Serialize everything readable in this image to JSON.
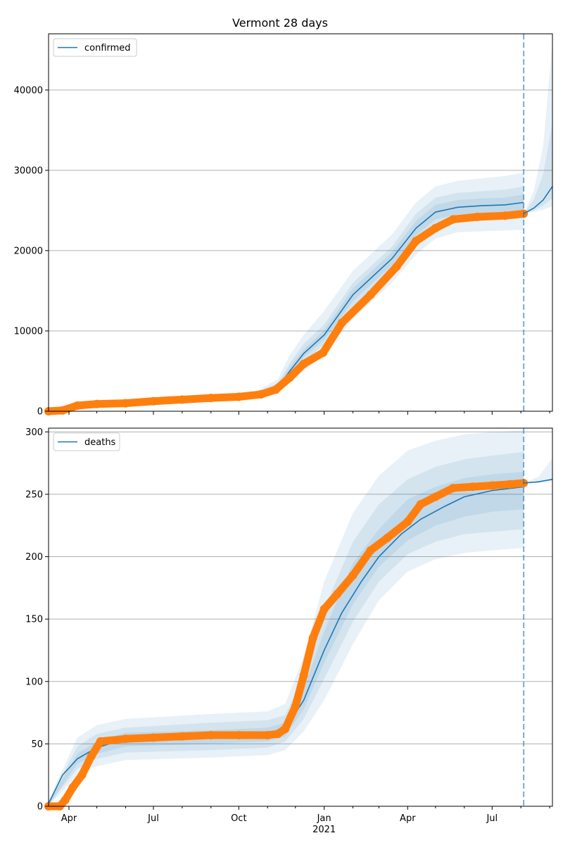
{
  "chart_data": [
    {
      "type": "line",
      "panel": "top",
      "title": "Vermont 28 days",
      "ylim": [
        0,
        47000
      ],
      "yticks": [
        0,
        10000,
        20000,
        30000,
        40000
      ],
      "grid": "y-major",
      "legend": {
        "placement": "top-left",
        "entries": [
          "confirmed"
        ]
      },
      "xlim": [
        "2020-03-10",
        "2021-09-04"
      ],
      "forecast_start": "2021-08-04",
      "series": [
        {
          "name": "confirmed",
          "style": "line",
          "x": [
            "2020-03-10",
            "2020-04-15",
            "2020-06-01",
            "2020-09-01",
            "2020-10-20",
            "2020-11-12",
            "2020-11-25",
            "2020-12-10",
            "2021-01-01",
            "2021-02-01",
            "2021-03-15",
            "2021-04-10",
            "2021-05-01",
            "2021-05-25",
            "2021-06-20",
            "2021-07-15",
            "2021-08-04"
          ],
          "values": [
            0,
            900,
            1100,
            1700,
            2200,
            3000,
            5000,
            7200,
            9500,
            14500,
            19000,
            22800,
            24800,
            25400,
            25600,
            25700,
            26000
          ]
        },
        {
          "style": "points",
          "x": [
            "2020-03-10",
            "2020-03-25",
            "2020-04-10",
            "2020-05-01",
            "2020-06-01",
            "2020-07-01",
            "2020-08-01",
            "2020-09-01",
            "2020-10-01",
            "2020-10-25",
            "2020-11-10",
            "2020-11-25",
            "2020-12-10",
            "2020-12-31",
            "2021-01-20",
            "2021-02-20",
            "2021-03-20",
            "2021-04-10",
            "2021-05-01",
            "2021-05-20",
            "2021-06-15",
            "2021-07-15",
            "2021-08-04"
          ],
          "values": [
            0,
            100,
            700,
            900,
            1000,
            1250,
            1450,
            1650,
            1800,
            2100,
            2700,
            4200,
            5900,
            7300,
            11000,
            14500,
            18000,
            21200,
            22800,
            23900,
            24200,
            24350,
            24600
          ]
        },
        {
          "style": "forecast-line",
          "x": [
            "2021-08-04",
            "2021-08-15",
            "2021-08-25",
            "2021-09-04"
          ],
          "values": [
            24600,
            25300,
            26300,
            28000
          ]
        }
      ],
      "bands": [
        {
          "x": [
            "2020-03-10",
            "2020-10-20",
            "2020-11-12",
            "2020-11-25",
            "2020-12-10",
            "2021-01-01",
            "2021-02-01",
            "2021-03-15",
            "2021-04-10",
            "2021-05-01",
            "2021-05-25",
            "2021-06-20",
            "2021-07-15",
            "2021-08-04"
          ],
          "lower": [
            0,
            2000,
            2500,
            3500,
            5000,
            7000,
            11500,
            16000,
            19500,
            21500,
            22300,
            22400,
            22500,
            22600
          ],
          "upper": [
            0,
            2500,
            4000,
            7000,
            9500,
            12500,
            17500,
            22000,
            26000,
            28000,
            28700,
            29000,
            29300,
            29700
          ]
        },
        {
          "x": [
            "2020-03-10",
            "2020-10-20",
            "2020-11-12",
            "2020-11-25",
            "2020-12-10",
            "2021-01-01",
            "2021-02-01",
            "2021-03-15",
            "2021-04-10",
            "2021-05-01",
            "2021-05-25",
            "2021-06-20",
            "2021-07-15",
            "2021-08-04"
          ],
          "lower": [
            0,
            2050,
            2650,
            4100,
            6100,
            8300,
            13000,
            17500,
            21000,
            23000,
            23700,
            23800,
            23900,
            24000
          ],
          "upper": [
            0,
            2400,
            3500,
            6000,
            8400,
            10800,
            16000,
            20500,
            24600,
            26600,
            27200,
            27400,
            27600,
            28000
          ]
        },
        {
          "x": [
            "2020-03-10",
            "2020-10-20",
            "2020-11-12",
            "2020-11-25",
            "2020-12-10",
            "2021-01-01",
            "2021-02-01",
            "2021-03-15",
            "2021-04-10",
            "2021-05-01",
            "2021-05-25",
            "2021-06-20",
            "2021-07-15",
            "2021-08-04"
          ],
          "lower": [
            0,
            2100,
            2800,
            4500,
            6700,
            8900,
            13700,
            18200,
            21900,
            23900,
            24500,
            24700,
            24800,
            24900
          ],
          "upper": [
            0,
            2300,
            3200,
            5500,
            7700,
            10100,
            15300,
            19800,
            23700,
            25700,
            26300,
            26500,
            26600,
            27000
          ]
        },
        {
          "x": [
            "2021-08-04",
            "2021-08-15",
            "2021-08-25",
            "2021-09-04"
          ],
          "lower": [
            24600,
            24800,
            25100,
            25500
          ],
          "upper": [
            24600,
            27500,
            33000,
            46000
          ]
        },
        {
          "x": [
            "2021-08-04",
            "2021-08-15",
            "2021-08-25",
            "2021-09-04"
          ],
          "lower": [
            24600,
            25000,
            25600,
            26500
          ],
          "upper": [
            24600,
            26400,
            29500,
            36000
          ]
        }
      ]
    },
    {
      "type": "line",
      "panel": "bottom",
      "ylim": [
        0,
        303
      ],
      "yticks": [
        0,
        50,
        100,
        150,
        200,
        250,
        300
      ],
      "grid": "y-major",
      "legend": {
        "placement": "top-left",
        "entries": [
          "deaths"
        ]
      },
      "xlim": [
        "2020-03-10",
        "2021-09-04"
      ],
      "xticks": [
        "Apr",
        "Jul",
        "Oct",
        "Jan",
        "Apr",
        "Jul"
      ],
      "xtick_dates": [
        "2020-04-01",
        "2020-07-01",
        "2020-10-01",
        "2021-01-01",
        "2021-04-01",
        "2021-07-01"
      ],
      "x_year_label": "2021",
      "forecast_start": "2021-08-04",
      "series": [
        {
          "name": "deaths",
          "style": "line",
          "x": [
            "2020-03-10",
            "2020-03-25",
            "2020-04-10",
            "2020-05-01",
            "2020-06-01",
            "2020-07-01",
            "2020-08-01",
            "2020-09-01",
            "2020-10-01",
            "2020-11-01",
            "2020-11-20",
            "2020-12-10",
            "2021-01-01",
            "2021-01-20",
            "2021-02-10",
            "2021-03-01",
            "2021-03-25",
            "2021-04-15",
            "2021-05-10",
            "2021-06-01",
            "2021-07-01",
            "2021-08-04"
          ],
          "values": [
            2,
            25,
            38,
            47,
            54,
            55,
            55,
            56,
            57,
            58,
            62,
            85,
            125,
            155,
            180,
            200,
            218,
            230,
            240,
            248,
            253,
            256
          ]
        },
        {
          "style": "points",
          "x": [
            "2020-03-10",
            "2020-03-22",
            "2020-03-28",
            "2020-04-05",
            "2020-04-15",
            "2020-04-25",
            "2020-05-05",
            "2020-06-01",
            "2020-07-01",
            "2020-08-01",
            "2020-09-01",
            "2020-10-01",
            "2020-11-01",
            "2020-11-12",
            "2020-11-20",
            "2020-12-01",
            "2020-12-10",
            "2020-12-20",
            "2021-01-01",
            "2021-01-15",
            "2021-02-01",
            "2021-02-20",
            "2021-03-10",
            "2021-04-01",
            "2021-04-15",
            "2021-05-01",
            "2021-05-20",
            "2021-06-10",
            "2021-07-01",
            "2021-07-20",
            "2021-08-04"
          ],
          "values": [
            0,
            0,
            5,
            15,
            25,
            40,
            52,
            54,
            55,
            56,
            57,
            57,
            57,
            58,
            62,
            80,
            105,
            135,
            158,
            170,
            185,
            205,
            215,
            228,
            242,
            248,
            255,
            256,
            257,
            258,
            259
          ]
        },
        {
          "style": "forecast-line",
          "x": [
            "2021-08-04",
            "2021-08-20",
            "2021-09-04"
          ],
          "values": [
            259,
            260,
            262
          ]
        }
      ],
      "bands": [
        {
          "x": [
            "2020-03-10",
            "2020-04-10",
            "2020-05-01",
            "2020-06-01",
            "2020-09-01",
            "2020-11-01",
            "2020-11-20",
            "2020-12-10",
            "2021-01-01",
            "2021-02-01",
            "2021-03-01",
            "2021-04-01",
            "2021-05-01",
            "2021-06-01",
            "2021-07-01",
            "2021-08-04"
          ],
          "lower": [
            0,
            25,
            32,
            37,
            39,
            41,
            45,
            60,
            85,
            130,
            165,
            188,
            198,
            203,
            205,
            207
          ],
          "upper": [
            5,
            55,
            65,
            70,
            74,
            76,
            82,
            120,
            180,
            235,
            265,
            285,
            293,
            298,
            300,
            301
          ]
        },
        {
          "x": [
            "2020-03-10",
            "2020-04-10",
            "2020-05-01",
            "2020-06-01",
            "2020-09-01",
            "2020-11-01",
            "2020-11-20",
            "2020-12-10",
            "2021-01-01",
            "2021-02-01",
            "2021-03-01",
            "2021-04-01",
            "2021-05-01",
            "2021-06-01",
            "2021-07-01",
            "2021-08-04"
          ],
          "lower": [
            1,
            30,
            38,
            43,
            45,
            47,
            52,
            70,
            102,
            148,
            180,
            202,
            212,
            218,
            220,
            222
          ],
          "upper": [
            4,
            48,
            58,
            63,
            67,
            69,
            73,
            105,
            158,
            212,
            242,
            262,
            272,
            278,
            281,
            284
          ]
        },
        {
          "x": [
            "2020-03-10",
            "2020-04-10",
            "2020-05-01",
            "2020-06-01",
            "2020-09-01",
            "2020-11-01",
            "2020-11-20",
            "2020-12-10",
            "2021-01-01",
            "2021-02-01",
            "2021-03-01",
            "2021-04-01",
            "2021-05-01",
            "2021-06-01",
            "2021-07-01",
            "2021-08-04"
          ],
          "lower": [
            1,
            34,
            42,
            48,
            50,
            52,
            56,
            78,
            115,
            162,
            192,
            213,
            225,
            232,
            236,
            238
          ],
          "upper": [
            3,
            42,
            52,
            59,
            61,
            63,
            67,
            95,
            140,
            195,
            222,
            246,
            256,
            263,
            266,
            268
          ]
        },
        {
          "x": [
            "2021-08-04",
            "2021-08-20",
            "2021-09-04"
          ],
          "lower": [
            259,
            259,
            260
          ],
          "upper": [
            259,
            264,
            279
          ]
        }
      ]
    }
  ],
  "colors": {
    "line": "#1f77b4",
    "points": "#ff7f0e",
    "band": "#1f77b4",
    "grid": "#b0b0b0",
    "forecast_marker": "#1f77b4"
  }
}
